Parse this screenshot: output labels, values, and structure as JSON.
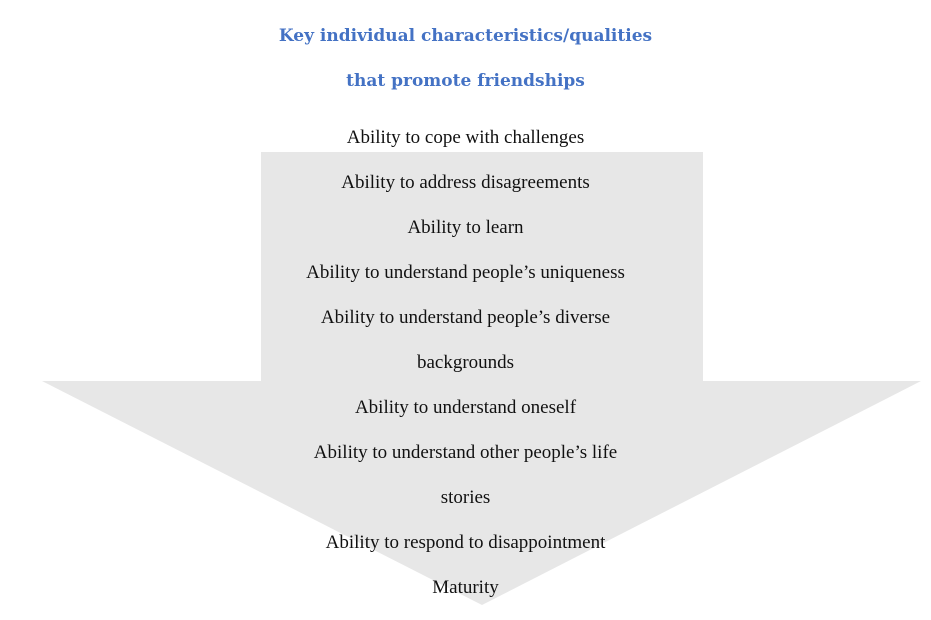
{
  "title": {
    "line1": "Key individual characteristics/qualities",
    "line2": "that promote friendships"
  },
  "items": [
    "Ability to cope with challenges",
    "Ability to address disagreements",
    "Ability to learn",
    "Ability to understand people’s uniqueness",
    "Ability to understand people’s diverse",
    "backgrounds",
    "Ability to understand oneself",
    "Ability to understand other people’s life",
    "stories",
    "Ability to respond to disappointment",
    "Maturity"
  ],
  "colors": {
    "title": "#4472c4",
    "arrow_fill": "#e7e7e7",
    "text": "#111111"
  },
  "shape": "down-arrow"
}
